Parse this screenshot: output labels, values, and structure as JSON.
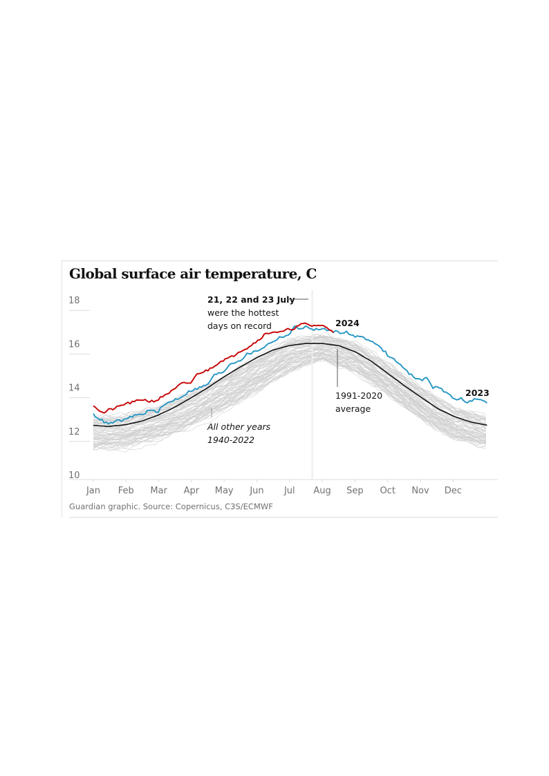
{
  "chart_data": {
    "type": "line",
    "title": "Global surface air temperature, C",
    "source": "Guardian graphic. Source: Copernicus, C3S/ECMWF",
    "xlabel": "",
    "ylabel": "",
    "ylim": [
      10,
      18
    ],
    "yticks": [
      "18",
      "16",
      "14",
      "12",
      "10"
    ],
    "ytick_values": [
      18,
      16,
      14,
      12,
      10
    ],
    "x_categories": [
      "Jan",
      "Feb",
      "Mar",
      "Apr",
      "May",
      "Jun",
      "Jul",
      "Aug",
      "Sep",
      "Oct",
      "Nov",
      "Dec"
    ],
    "x_unit": "day of year (1-366)",
    "grid": true,
    "series": [
      {
        "name": "1991-2020 average",
        "color": "#121212",
        "x": [
          1,
          15,
          31,
          46,
          60,
          75,
          91,
          106,
          121,
          136,
          152,
          167,
          182,
          197,
          213,
          228,
          244,
          259,
          274,
          289,
          305,
          320,
          335,
          350,
          366
        ],
        "values": [
          12.45,
          12.4,
          12.48,
          12.65,
          12.9,
          13.25,
          13.7,
          14.15,
          14.65,
          15.1,
          15.55,
          15.9,
          16.1,
          16.2,
          16.2,
          16.1,
          15.8,
          15.35,
          14.8,
          14.25,
          13.7,
          13.2,
          12.85,
          12.6,
          12.45
        ]
      },
      {
        "name": "2023",
        "color": "#2596c4",
        "x": [
          1,
          8,
          15,
          22,
          31,
          38,
          46,
          53,
          60,
          67,
          75,
          82,
          91,
          98,
          106,
          113,
          121,
          128,
          136,
          143,
          152,
          159,
          167,
          174,
          182,
          187,
          192,
          197,
          204,
          213,
          219,
          224,
          228,
          234,
          240,
          244,
          250,
          256,
          259,
          265,
          271,
          274,
          280,
          286,
          289,
          295,
          300,
          305,
          310,
          315,
          320,
          325,
          330,
          335,
          340,
          345,
          350,
          355,
          360,
          366
        ],
        "values": [
          12.95,
          12.7,
          12.5,
          12.65,
          12.7,
          12.9,
          12.95,
          13.15,
          13.05,
          13.4,
          13.6,
          13.75,
          14.05,
          14.15,
          14.3,
          14.75,
          14.9,
          15.3,
          15.4,
          15.7,
          15.85,
          16.05,
          16.3,
          16.5,
          16.6,
          16.95,
          16.9,
          16.95,
          16.85,
          16.85,
          16.8,
          16.75,
          16.7,
          16.75,
          16.55,
          16.5,
          16.55,
          16.3,
          16.35,
          16.05,
          15.8,
          15.6,
          15.45,
          15.15,
          15.0,
          14.75,
          14.6,
          14.55,
          14.6,
          14.2,
          14.25,
          14.0,
          13.85,
          13.65,
          13.7,
          13.5,
          13.55,
          13.7,
          13.55,
          13.5
        ]
      },
      {
        "name": "2024",
        "color": "#c70000",
        "x": [
          1,
          5,
          10,
          15,
          22,
          31,
          38,
          46,
          53,
          60,
          67,
          75,
          82,
          91,
          98,
          106,
          113,
          121,
          128,
          136,
          143,
          152,
          159,
          167,
          174,
          182,
          187,
          192,
          197,
          204,
          208,
          213,
          218,
          223
        ],
        "values": [
          13.4,
          13.2,
          13.0,
          13.15,
          13.25,
          13.45,
          13.5,
          13.65,
          13.55,
          13.6,
          13.85,
          14.05,
          14.35,
          14.4,
          14.85,
          14.95,
          15.2,
          15.45,
          15.55,
          15.85,
          16.0,
          16.3,
          16.6,
          16.75,
          16.7,
          16.85,
          16.9,
          17.05,
          17.1,
          17.0,
          17.05,
          17.0,
          16.9,
          16.75
        ]
      }
    ],
    "band": {
      "name": "All other years 1940-2022",
      "color": "#cfcfcf",
      "x": [
        1,
        31,
        60,
        91,
        121,
        152,
        182,
        213,
        244,
        274,
        305,
        335,
        366
      ],
      "low": [
        11.35,
        11.45,
        11.8,
        12.4,
        13.15,
        14.0,
        14.9,
        15.45,
        14.9,
        13.85,
        12.7,
        11.85,
        11.45
      ],
      "high": [
        12.85,
        12.95,
        13.3,
        13.9,
        14.7,
        15.6,
        16.4,
        16.65,
        16.2,
        15.25,
        14.15,
        13.25,
        12.85
      ]
    },
    "reference_line": {
      "label": "21-23 July",
      "x": 204
    },
    "annotations": [
      {
        "id": "hottest",
        "lines": [
          "21, 22 and 23 July",
          "were the hottest",
          "days on record"
        ],
        "bold_first": true
      },
      {
        "id": "avg",
        "lines": [
          "1991-2020",
          "average"
        ]
      },
      {
        "id": "others",
        "lines": [
          "All other years",
          "1940-2022"
        ],
        "italic": true,
        "color": "#9a9a9a"
      },
      {
        "id": "label-2024",
        "lines": [
          "2024"
        ],
        "color": "#c70000"
      },
      {
        "id": "label-2023",
        "lines": [
          "2023"
        ],
        "color": "#2596c4"
      }
    ]
  }
}
